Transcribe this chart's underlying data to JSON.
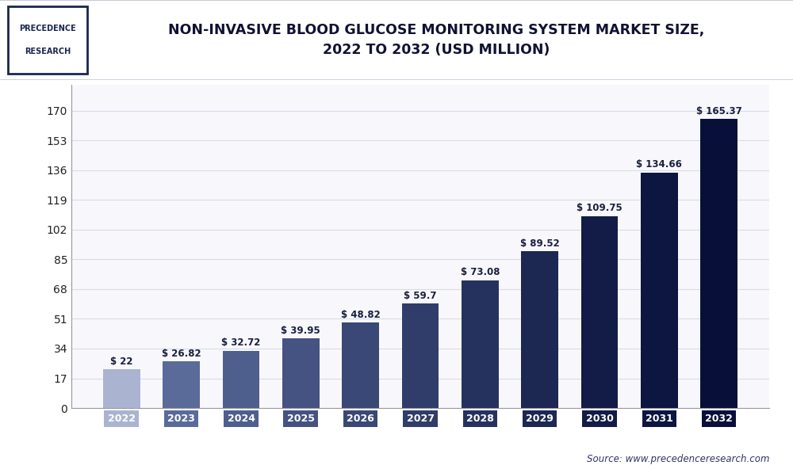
{
  "categories": [
    "2022",
    "2023",
    "2024",
    "2025",
    "2026",
    "2027",
    "2028",
    "2029",
    "2030",
    "2031",
    "2032"
  ],
  "values": [
    22,
    26.82,
    32.72,
    39.95,
    48.82,
    59.7,
    73.08,
    89.52,
    109.75,
    134.66,
    165.37
  ],
  "bar_colors": [
    "#aab4d0",
    "#5a6b9a",
    "#4e5f8e",
    "#445382",
    "#3a4876",
    "#303d6a",
    "#26325e",
    "#1c2752",
    "#131c46",
    "#0d1640",
    "#08103a"
  ],
  "tick_colors": [
    "#aab4d0",
    "#5a6b9a",
    "#4e5f8e",
    "#445382",
    "#3a4876",
    "#303d6a",
    "#26325e",
    "#1c2752",
    "#131c46",
    "#0d1640",
    "#08103a"
  ],
  "title_line1": "NON-INVASIVE BLOOD GLUCOSE MONITORING SYSTEM MARKET SIZE,",
  "title_line2": "2022 TO 2032 (USD MILLION)",
  "yticks": [
    0,
    17,
    34,
    51,
    68,
    85,
    102,
    119,
    136,
    153,
    170
  ],
  "ylim": [
    0,
    185
  ],
  "source_text": "Source: www.precedenceresearch.com",
  "bg_color": "#ffffff",
  "plot_bg_color": "#f8f8fc",
  "grid_color": "#d8dce8",
  "label_color": "#1a2040",
  "value_label_prefix": "$ ",
  "header_line_color": "#c8ccd8",
  "logo_border_color": "#1a2550",
  "spine_color": "#999999"
}
